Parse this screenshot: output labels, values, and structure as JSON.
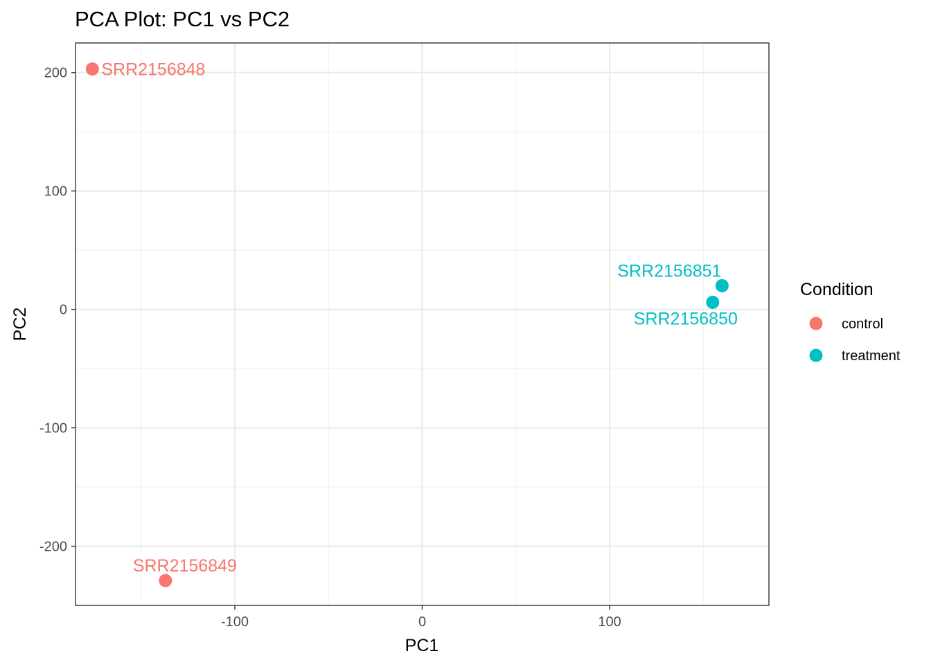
{
  "chart_data": {
    "type": "scatter",
    "title": "PCA Plot: PC1 vs PC2",
    "xlabel": "PC1",
    "ylabel": "PC2",
    "xlim": [
      -185,
      185
    ],
    "ylim": [
      -250,
      225
    ],
    "x_ticks": [
      -100,
      0,
      100
    ],
    "x_tick_labels": [
      "-100",
      "0",
      "100"
    ],
    "y_ticks": [
      -200,
      -100,
      0,
      100,
      200
    ],
    "y_tick_labels": [
      "-200",
      "-100",
      "0",
      "100",
      "200"
    ],
    "grid": true,
    "legend": {
      "title": "Condition",
      "placement": "right",
      "entries": [
        {
          "label": "control",
          "color": "#F8766D"
        },
        {
          "label": "treatment",
          "color": "#00BFC4"
        }
      ]
    },
    "points": [
      {
        "label": "SRR2156848",
        "x": -176,
        "y": 203,
        "group": "control"
      },
      {
        "label": "SRR2156849",
        "x": -137,
        "y": -229,
        "group": "control"
      },
      {
        "label": "SRR2156850",
        "x": 155,
        "y": 6,
        "group": "treatment"
      },
      {
        "label": "SRR2156851",
        "x": 160,
        "y": 20,
        "group": "treatment"
      }
    ]
  },
  "colors": {
    "control": "#F8766D",
    "treatment": "#00BFC4",
    "grid_major": "#EBEBEB",
    "grid_minor": "#F2F2F2",
    "panel_border": "#333333"
  }
}
